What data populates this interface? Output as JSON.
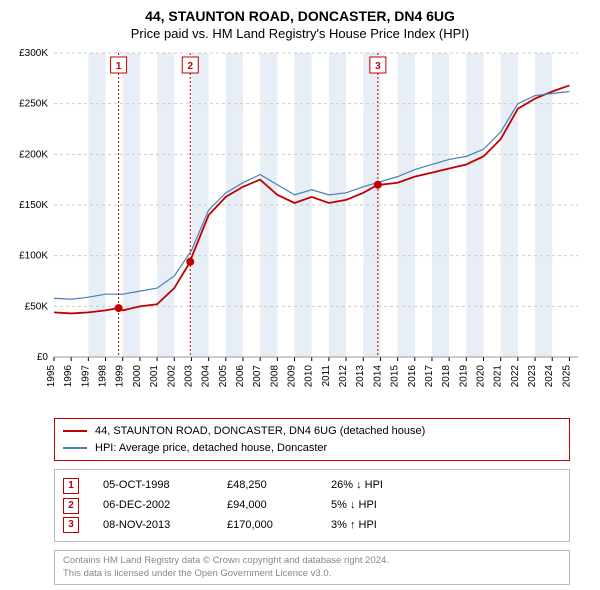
{
  "title": "44, STAUNTON ROAD, DONCASTER, DN4 6UG",
  "subtitle": "Price paid vs. HM Land Registry's House Price Index (HPI)",
  "chart": {
    "type": "line",
    "background_color": "#ffffff",
    "grid_color": "#cccccc",
    "grid_dash": "3,3",
    "band_color": "#e8eef5",
    "x": {
      "min": 1995,
      "max": 2025.5,
      "ticks": [
        1995,
        1996,
        1997,
        1998,
        1999,
        2000,
        2001,
        2002,
        2003,
        2004,
        2005,
        2006,
        2007,
        2008,
        2009,
        2010,
        2011,
        2012,
        2013,
        2014,
        2015,
        2016,
        2017,
        2018,
        2019,
        2020,
        2021,
        2022,
        2023,
        2024,
        2025
      ],
      "label_fontsize": 10,
      "label_rotation": -90
    },
    "y": {
      "min": 0,
      "max": 300000,
      "ticks": [
        0,
        50000,
        100000,
        150000,
        200000,
        250000,
        300000
      ],
      "tick_labels": [
        "£0",
        "£50K",
        "£100K",
        "£150K",
        "£200K",
        "£250K",
        "£300K"
      ],
      "label_fontsize": 10
    },
    "bands": [
      [
        1997,
        1998
      ],
      [
        1999,
        2000
      ],
      [
        2001,
        2002
      ],
      [
        2003,
        2004
      ],
      [
        2005,
        2006
      ],
      [
        2007,
        2008
      ],
      [
        2009,
        2010
      ],
      [
        2011,
        2012
      ],
      [
        2013,
        2014
      ],
      [
        2015,
        2016
      ],
      [
        2017,
        2018
      ],
      [
        2019,
        2020
      ],
      [
        2021,
        2022
      ],
      [
        2023,
        2024
      ]
    ],
    "series": [
      {
        "name": "property",
        "color": "#c00000",
        "width": 1.8,
        "data": [
          [
            1995,
            44000
          ],
          [
            1996,
            43000
          ],
          [
            1997,
            44000
          ],
          [
            1998,
            46000
          ],
          [
            1998.76,
            48250
          ],
          [
            1999,
            46000
          ],
          [
            2000,
            50000
          ],
          [
            2001,
            52000
          ],
          [
            2002,
            68000
          ],
          [
            2002.93,
            94000
          ],
          [
            2003,
            98000
          ],
          [
            2004,
            140000
          ],
          [
            2005,
            158000
          ],
          [
            2006,
            168000
          ],
          [
            2007,
            175000
          ],
          [
            2008,
            160000
          ],
          [
            2009,
            152000
          ],
          [
            2010,
            158000
          ],
          [
            2011,
            152000
          ],
          [
            2012,
            155000
          ],
          [
            2013,
            162000
          ],
          [
            2013.85,
            170000
          ],
          [
            2014,
            170000
          ],
          [
            2015,
            172000
          ],
          [
            2016,
            178000
          ],
          [
            2017,
            182000
          ],
          [
            2018,
            186000
          ],
          [
            2019,
            190000
          ],
          [
            2020,
            198000
          ],
          [
            2021,
            215000
          ],
          [
            2022,
            245000
          ],
          [
            2023,
            255000
          ],
          [
            2024,
            262000
          ],
          [
            2025,
            268000
          ]
        ]
      },
      {
        "name": "hpi",
        "color": "#4a7ebb",
        "width": 1.2,
        "data": [
          [
            1995,
            58000
          ],
          [
            1996,
            57000
          ],
          [
            1997,
            59000
          ],
          [
            1998,
            62000
          ],
          [
            1999,
            62000
          ],
          [
            2000,
            65000
          ],
          [
            2001,
            68000
          ],
          [
            2002,
            80000
          ],
          [
            2003,
            105000
          ],
          [
            2004,
            145000
          ],
          [
            2005,
            162000
          ],
          [
            2006,
            172000
          ],
          [
            2007,
            180000
          ],
          [
            2008,
            170000
          ],
          [
            2009,
            160000
          ],
          [
            2010,
            165000
          ],
          [
            2011,
            160000
          ],
          [
            2012,
            162000
          ],
          [
            2013,
            168000
          ],
          [
            2014,
            173000
          ],
          [
            2015,
            178000
          ],
          [
            2016,
            185000
          ],
          [
            2017,
            190000
          ],
          [
            2018,
            195000
          ],
          [
            2019,
            198000
          ],
          [
            2020,
            205000
          ],
          [
            2021,
            222000
          ],
          [
            2022,
            250000
          ],
          [
            2023,
            258000
          ],
          [
            2024,
            260000
          ],
          [
            2025,
            262000
          ]
        ]
      }
    ],
    "markers": [
      {
        "n": "1",
        "x": 1998.76,
        "y": 48250
      },
      {
        "n": "2",
        "x": 2002.93,
        "y": 94000
      },
      {
        "n": "3",
        "x": 2013.85,
        "y": 170000
      }
    ],
    "marker_dot_color": "#c00000",
    "marker_line_color": "#c00000",
    "marker_line_dash": "2,2",
    "marker_box_stroke": "#c00000",
    "marker_box_fill": "#ffffff",
    "marker_text_color": "#c00000",
    "marker_fontsize": 10
  },
  "legend": {
    "border_color": "#c00000",
    "items": [
      {
        "color": "#c00000",
        "label": "44, STAUNTON ROAD, DONCASTER, DN4 6UG (detached house)"
      },
      {
        "color": "#4a7ebb",
        "label": "HPI: Average price, detached house, Doncaster"
      }
    ]
  },
  "sales": {
    "border_color": "#bbbbbb",
    "rows": [
      {
        "n": "1",
        "date": "05-OCT-1998",
        "price": "£48,250",
        "hpi": "26% ↓ HPI"
      },
      {
        "n": "2",
        "date": "06-DEC-2002",
        "price": "£94,000",
        "hpi": "5% ↓ HPI"
      },
      {
        "n": "3",
        "date": "08-NOV-2013",
        "price": "£170,000",
        "hpi": "3% ↑ HPI"
      }
    ]
  },
  "footer": {
    "line1": "Contains HM Land Registry data © Crown copyright and database right 2024.",
    "line2": "This data is licensed under the Open Government Licence v3.0."
  }
}
